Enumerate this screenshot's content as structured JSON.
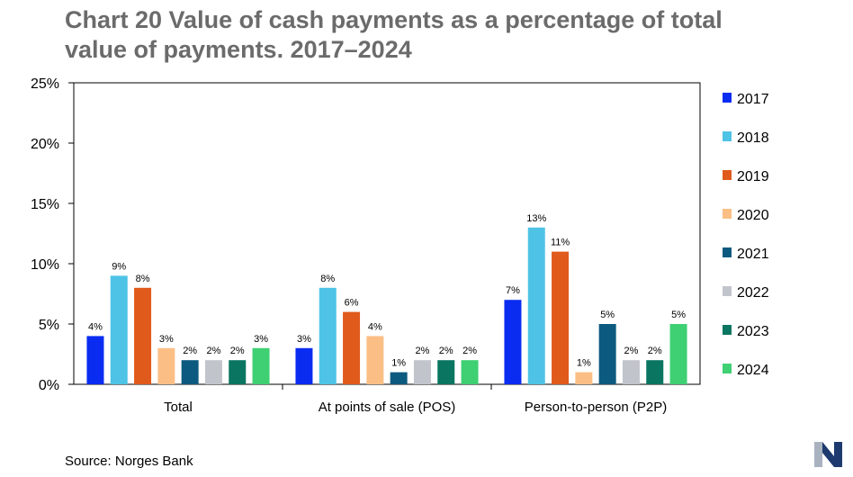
{
  "title": "Chart 20 Value of cash payments as a percentage of total value of payments. 2017–2024",
  "source": "Source: Norges Bank",
  "chart_data": {
    "type": "bar",
    "categories": [
      "Total",
      "At points of sale (POS)",
      "Person-to-person (P2P)"
    ],
    "series": [
      {
        "name": "2017",
        "color": "#0a2cf0",
        "values": [
          4,
          3,
          7
        ]
      },
      {
        "name": "2018",
        "color": "#4ec3e6",
        "values": [
          9,
          8,
          13
        ]
      },
      {
        "name": "2019",
        "color": "#e05a1c",
        "values": [
          8,
          6,
          11
        ]
      },
      {
        "name": "2020",
        "color": "#fbbf86",
        "values": [
          3,
          4,
          1
        ]
      },
      {
        "name": "2021",
        "color": "#0d5a80",
        "values": [
          2,
          1,
          5
        ]
      },
      {
        "name": "2022",
        "color": "#c2c4cc",
        "values": [
          2,
          2,
          2
        ]
      },
      {
        "name": "2023",
        "color": "#0a7560",
        "values": [
          2,
          2,
          2
        ]
      },
      {
        "name": "2024",
        "color": "#3ed072",
        "values": [
          3,
          2,
          5
        ]
      }
    ],
    "yticks": [
      "0%",
      "5%",
      "10%",
      "15%",
      "20%",
      "25%"
    ],
    "ylim": [
      0,
      25
    ],
    "value_suffix": "%",
    "xlabel": "",
    "ylabel": "",
    "legend": "right",
    "grid": false
  }
}
